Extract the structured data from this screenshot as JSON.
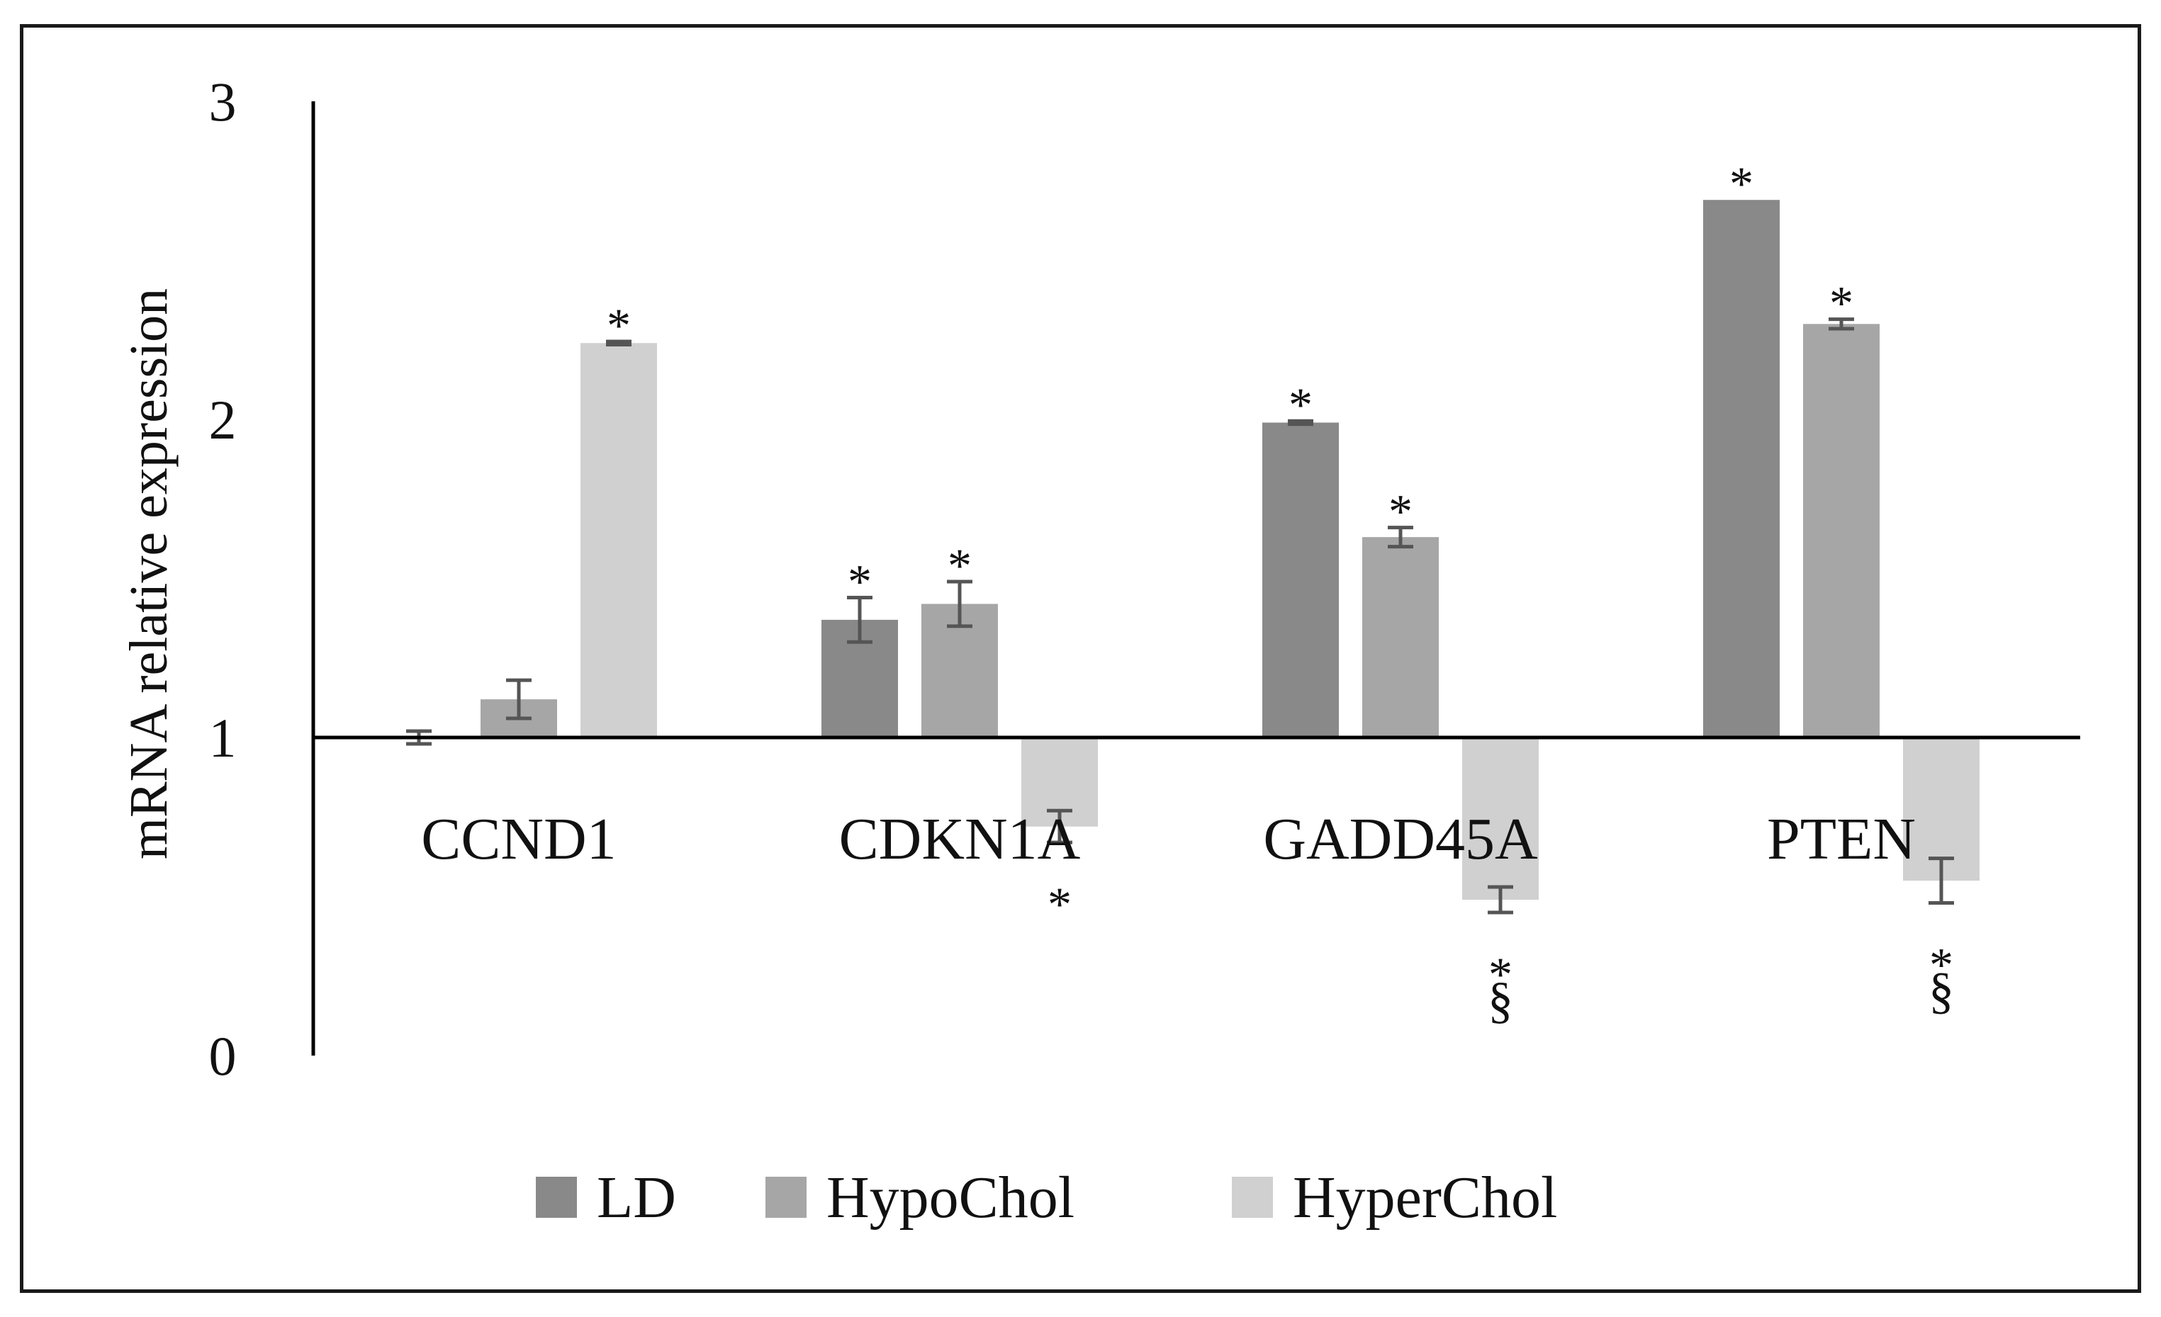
{
  "chart_data": {
    "type": "bar",
    "title": "",
    "xlabel": "",
    "ylabel": "mRNA relative expression",
    "ylim": [
      0,
      3
    ],
    "yticks": [
      "0",
      "1",
      "2",
      "3"
    ],
    "baseline": 1,
    "grid": false,
    "legend_position": "bottom-center",
    "categories": [
      "CCND1",
      "CDKN1A",
      "GADD45A",
      "PTEN"
    ],
    "series": [
      {
        "name": "LD",
        "color": "#898989",
        "values": [
          1.0,
          1.37,
          1.99,
          2.69
        ],
        "errors": [
          0.02,
          0.07,
          0.005,
          0.0
        ],
        "marks": [
          "",
          "*",
          "*",
          "*"
        ]
      },
      {
        "name": "HypoChol",
        "color": "#a6a6a6",
        "values": [
          1.12,
          1.42,
          1.63,
          2.3
        ],
        "errors": [
          0.06,
          0.07,
          0.03,
          0.015
        ],
        "marks": [
          "",
          "*",
          "*",
          "*"
        ]
      },
      {
        "name": "HyperChol",
        "color": "#d0d0d0",
        "values": [
          2.24,
          0.72,
          0.49,
          0.55
        ],
        "errors": [
          0.005,
          0.05,
          0.04,
          0.07
        ],
        "marks": [
          "*",
          "*",
          "*\n§",
          "*\n§"
        ]
      }
    ]
  }
}
